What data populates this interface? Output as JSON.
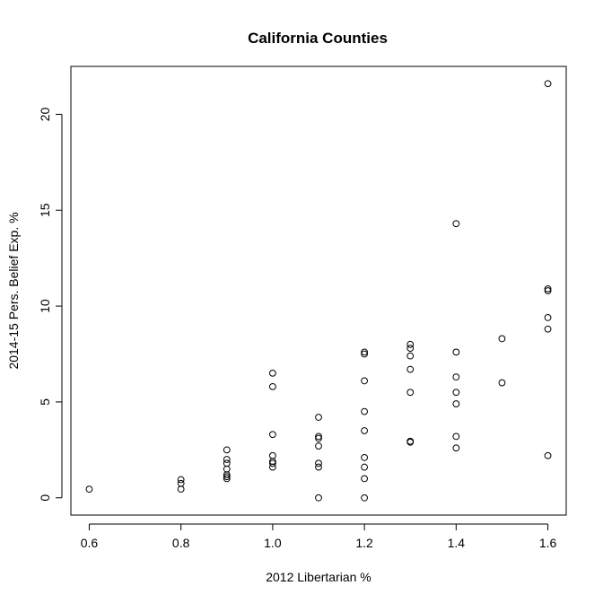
{
  "chart_data": {
    "type": "scatter",
    "title": "California Counties",
    "xlabel": "2012 Libertarian %",
    "ylabel": "2014-15 Pers. Belief Exp. %",
    "xlim": [
      0.56,
      1.64
    ],
    "ylim": [
      -0.9,
      22.5
    ],
    "xticks": [
      0.6,
      0.8,
      1.0,
      1.2,
      1.4,
      1.6
    ],
    "xtick_labels": [
      "0.6",
      "0.8",
      "1.0",
      "1.2",
      "1.4",
      "1.6"
    ],
    "yticks": [
      0,
      5,
      10,
      15,
      20
    ],
    "ytick_labels": [
      "0",
      "5",
      "10",
      "15",
      "20"
    ],
    "grid": false,
    "marker": "open-circle",
    "color": "#000000",
    "points": [
      {
        "x": 0.6,
        "y": 0.45
      },
      {
        "x": 0.8,
        "y": 0.45
      },
      {
        "x": 0.8,
        "y": 0.75
      },
      {
        "x": 0.8,
        "y": 0.95
      },
      {
        "x": 0.9,
        "y": 1.0
      },
      {
        "x": 0.9,
        "y": 1.1
      },
      {
        "x": 0.9,
        "y": 1.2
      },
      {
        "x": 0.9,
        "y": 1.5
      },
      {
        "x": 0.9,
        "y": 1.8
      },
      {
        "x": 0.9,
        "y": 2.0
      },
      {
        "x": 0.9,
        "y": 2.5
      },
      {
        "x": 1.0,
        "y": 1.6
      },
      {
        "x": 1.0,
        "y": 1.8
      },
      {
        "x": 1.0,
        "y": 1.9
      },
      {
        "x": 1.0,
        "y": 2.2
      },
      {
        "x": 1.0,
        "y": 3.3
      },
      {
        "x": 1.0,
        "y": 5.8
      },
      {
        "x": 1.0,
        "y": 6.5
      },
      {
        "x": 1.1,
        "y": 0.0
      },
      {
        "x": 1.1,
        "y": 1.6
      },
      {
        "x": 1.1,
        "y": 1.8
      },
      {
        "x": 1.1,
        "y": 2.7
      },
      {
        "x": 1.1,
        "y": 3.1
      },
      {
        "x": 1.1,
        "y": 3.2
      },
      {
        "x": 1.1,
        "y": 4.2
      },
      {
        "x": 1.2,
        "y": 0.0
      },
      {
        "x": 1.2,
        "y": 1.0
      },
      {
        "x": 1.2,
        "y": 1.6
      },
      {
        "x": 1.2,
        "y": 2.1
      },
      {
        "x": 1.2,
        "y": 3.5
      },
      {
        "x": 1.2,
        "y": 4.5
      },
      {
        "x": 1.2,
        "y": 6.1
      },
      {
        "x": 1.2,
        "y": 7.5
      },
      {
        "x": 1.2,
        "y": 7.6
      },
      {
        "x": 1.3,
        "y": 2.9
      },
      {
        "x": 1.3,
        "y": 2.95
      },
      {
        "x": 1.3,
        "y": 5.5
      },
      {
        "x": 1.3,
        "y": 6.7
      },
      {
        "x": 1.3,
        "y": 7.4
      },
      {
        "x": 1.3,
        "y": 7.8
      },
      {
        "x": 1.3,
        "y": 8.0
      },
      {
        "x": 1.4,
        "y": 2.6
      },
      {
        "x": 1.4,
        "y": 3.2
      },
      {
        "x": 1.4,
        "y": 4.9
      },
      {
        "x": 1.4,
        "y": 5.5
      },
      {
        "x": 1.4,
        "y": 6.3
      },
      {
        "x": 1.4,
        "y": 7.6
      },
      {
        "x": 1.4,
        "y": 14.3
      },
      {
        "x": 1.5,
        "y": 6.0
      },
      {
        "x": 1.5,
        "y": 8.3
      },
      {
        "x": 1.6,
        "y": 2.2
      },
      {
        "x": 1.6,
        "y": 8.8
      },
      {
        "x": 1.6,
        "y": 9.4
      },
      {
        "x": 1.6,
        "y": 10.8
      },
      {
        "x": 1.6,
        "y": 10.9
      },
      {
        "x": 1.6,
        "y": 21.6
      }
    ]
  }
}
